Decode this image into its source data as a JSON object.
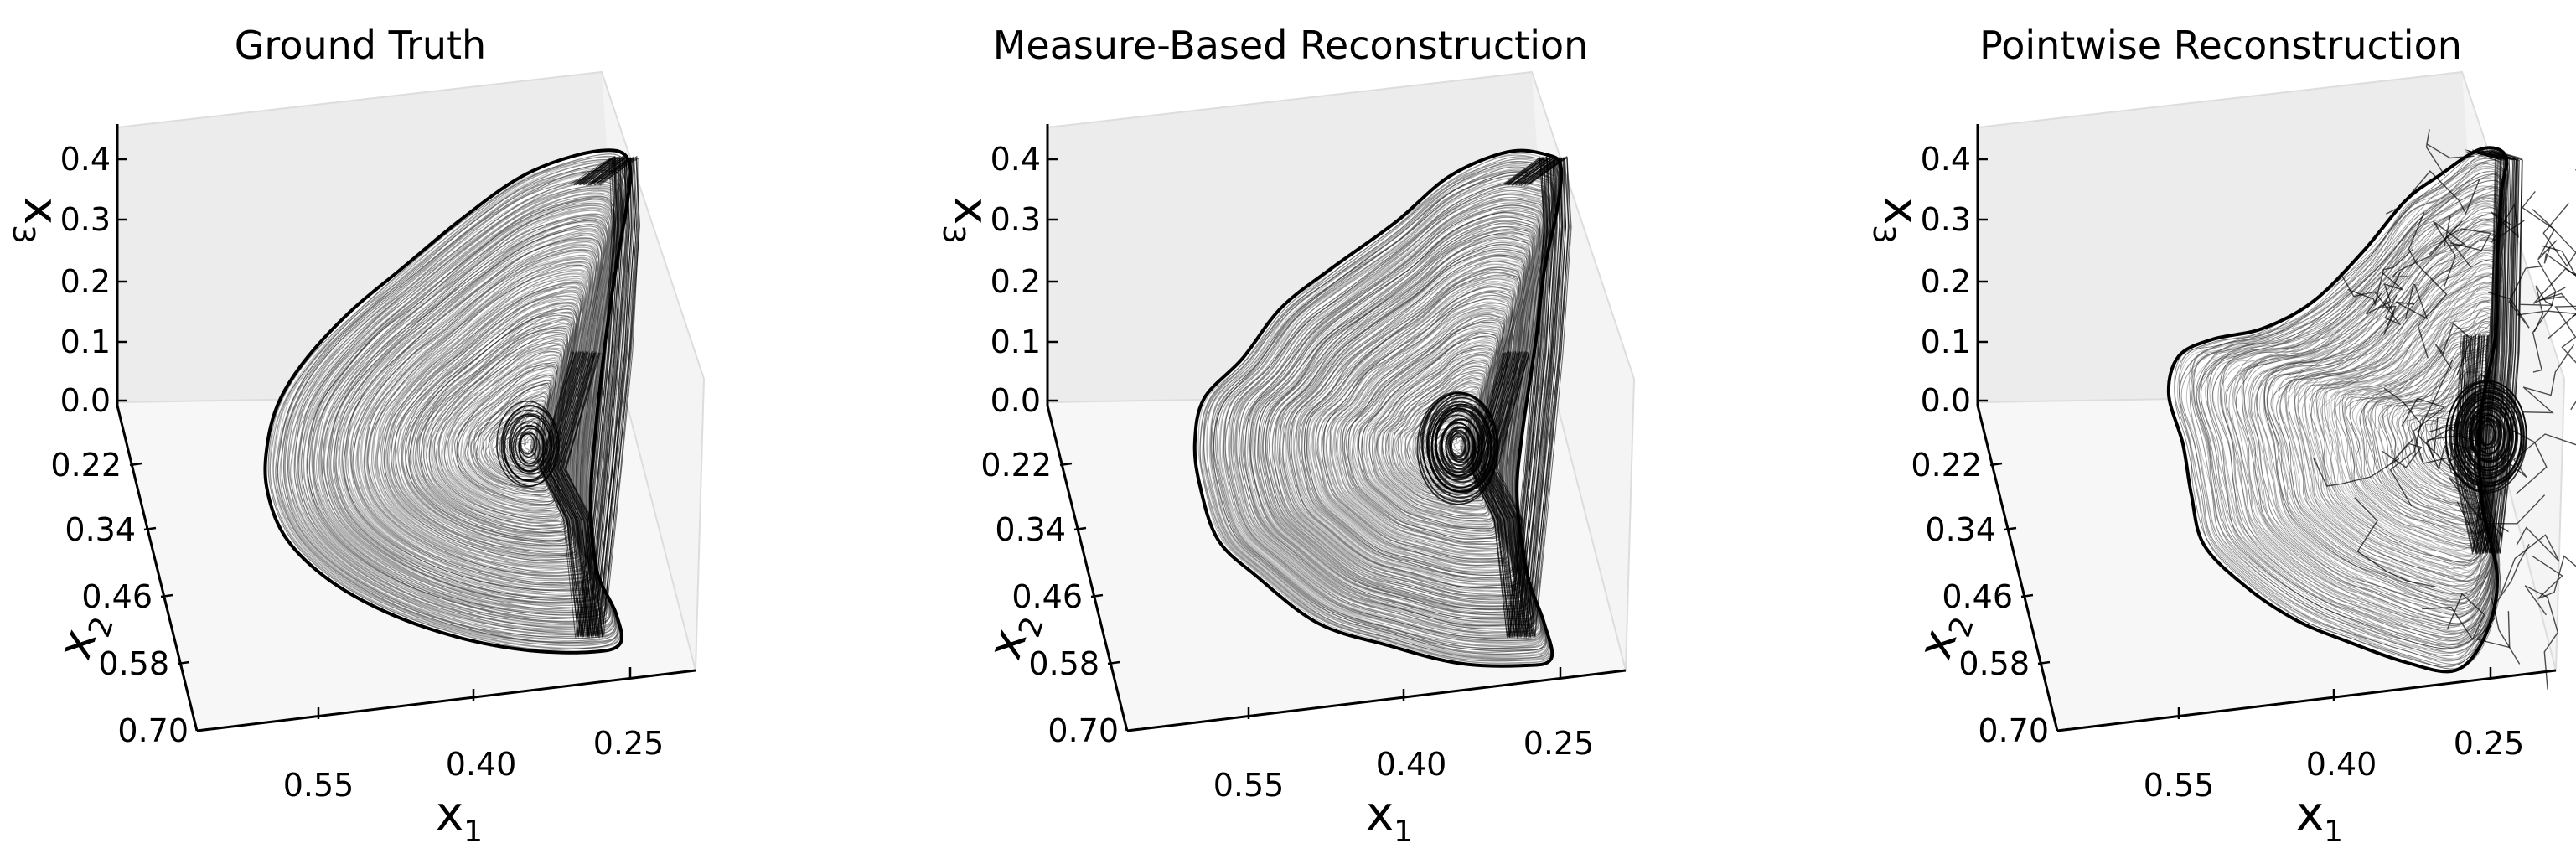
{
  "chart_data": [
    {
      "type": "line",
      "title": "Ground Truth",
      "xlabel": "x",
      "xlabel_sub": "1",
      "ylabel": "x",
      "ylabel_sub": "2",
      "zlabel": "x",
      "zlabel_sub": "3",
      "x_ticks": [
        "0.55",
        "0.40",
        "0.25"
      ],
      "y_ticks": [
        "0.22",
        "0.34",
        "0.46",
        "0.58",
        "0.70"
      ],
      "z_ticks": [
        "0.0",
        "0.1",
        "0.2",
        "0.3",
        "0.4"
      ],
      "x_range": [
        0.2,
        0.7
      ],
      "y_range": [
        0.1,
        0.7
      ],
      "z_range": [
        0.0,
        0.45
      ],
      "trajectory": "dense attractor trajectory"
    },
    {
      "type": "line",
      "title": "Measure-Based Reconstruction",
      "xlabel": "x",
      "xlabel_sub": "1",
      "ylabel": "x",
      "ylabel_sub": "2",
      "zlabel": "x",
      "zlabel_sub": "3",
      "x_ticks": [
        "0.55",
        "0.40",
        "0.25"
      ],
      "y_ticks": [
        "0.22",
        "0.34",
        "0.46",
        "0.58",
        "0.70"
      ],
      "z_ticks": [
        "0.0",
        "0.1",
        "0.2",
        "0.3",
        "0.4"
      ],
      "x_range": [
        0.2,
        0.7
      ],
      "y_range": [
        0.1,
        0.7
      ],
      "z_range": [
        0.0,
        0.45
      ],
      "trajectory": "dense attractor trajectory"
    },
    {
      "type": "line",
      "title": "Pointwise Reconstruction",
      "xlabel": "x",
      "xlabel_sub": "1",
      "ylabel": "x",
      "ylabel_sub": "2",
      "zlabel": "x",
      "zlabel_sub": "3",
      "x_ticks": [
        "0.55",
        "0.40",
        "0.25"
      ],
      "y_ticks": [
        "0.22",
        "0.34",
        "0.46",
        "0.58",
        "0.70"
      ],
      "z_ticks": [
        "0.0",
        "0.1",
        "0.2",
        "0.3",
        "0.4"
      ],
      "x_range": [
        0.2,
        0.7
      ],
      "y_range": [
        0.1,
        0.7
      ],
      "z_range": [
        0.0,
        0.45
      ],
      "trajectory": "irregular reconstructed trajectory"
    }
  ],
  "colors": {
    "trajectory": "#000000",
    "pane_back": "#ececec",
    "pane_side": "#f4f4f4",
    "pane_floor": "#f7f7f7",
    "edge": "#dddddd"
  }
}
